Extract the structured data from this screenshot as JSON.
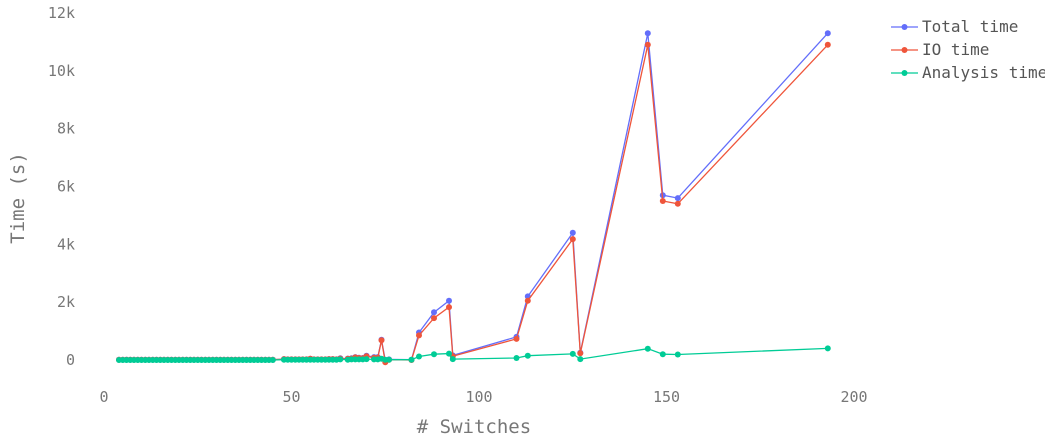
{
  "chart_data": {
    "type": "line",
    "title": "",
    "xlabel": "# Switches",
    "ylabel": "Time (s)",
    "xlim": [
      0,
      210
    ],
    "ylim": [
      -200,
      12000
    ],
    "xticks": [
      0,
      50,
      100,
      150,
      200
    ],
    "xtick_labels": [
      "0",
      "50",
      "100",
      "150",
      "200"
    ],
    "yticks": [
      0,
      2000,
      4000,
      6000,
      8000,
      10000,
      12000
    ],
    "ytick_labels": [
      "0",
      "2k",
      "4k",
      "6k",
      "8k",
      "10k",
      "12k"
    ],
    "grid": false,
    "legend_position": "top-right",
    "series": [
      {
        "name": "Total time",
        "color": "#636efa",
        "points": [
          [
            4,
            10
          ],
          [
            5,
            10
          ],
          [
            6,
            10
          ],
          [
            7,
            10
          ],
          [
            8,
            10
          ],
          [
            9,
            10
          ],
          [
            10,
            10
          ],
          [
            11,
            10
          ],
          [
            12,
            10
          ],
          [
            13,
            10
          ],
          [
            14,
            10
          ],
          [
            15,
            10
          ],
          [
            16,
            10
          ],
          [
            17,
            10
          ],
          [
            18,
            10
          ],
          [
            19,
            10
          ],
          [
            20,
            10
          ],
          [
            21,
            10
          ],
          [
            22,
            10
          ],
          [
            23,
            10
          ],
          [
            24,
            10
          ],
          [
            25,
            10
          ],
          [
            26,
            10
          ],
          [
            27,
            10
          ],
          [
            28,
            10
          ],
          [
            29,
            10
          ],
          [
            30,
            10
          ],
          [
            31,
            10
          ],
          [
            32,
            10
          ],
          [
            33,
            10
          ],
          [
            34,
            10
          ],
          [
            35,
            10
          ],
          [
            36,
            10
          ],
          [
            37,
            10
          ],
          [
            38,
            10
          ],
          [
            39,
            10
          ],
          [
            40,
            10
          ],
          [
            41,
            10
          ],
          [
            42,
            10
          ],
          [
            43,
            10
          ],
          [
            44,
            10
          ],
          [
            45,
            10
          ],
          [
            48,
            30
          ],
          [
            49,
            20
          ],
          [
            50,
            20
          ],
          [
            51,
            20
          ],
          [
            52,
            20
          ],
          [
            53,
            20
          ],
          [
            54,
            20
          ],
          [
            55,
            40
          ],
          [
            56,
            20
          ],
          [
            57,
            20
          ],
          [
            58,
            20
          ],
          [
            59,
            20
          ],
          [
            60,
            30
          ],
          [
            61,
            30
          ],
          [
            62,
            20
          ],
          [
            63,
            60
          ],
          [
            65,
            50
          ],
          [
            66,
            60
          ],
          [
            67,
            100
          ],
          [
            68,
            80
          ],
          [
            69,
            70
          ],
          [
            70,
            150
          ],
          [
            72,
            100
          ],
          [
            73,
            100
          ],
          [
            74,
            700
          ],
          [
            75,
            -20
          ],
          [
            76,
            20
          ],
          [
            82,
            10
          ],
          [
            84,
            950
          ],
          [
            88,
            1650
          ],
          [
            92,
            2050
          ],
          [
            93,
            160
          ],
          [
            110,
            800
          ],
          [
            113,
            2200
          ],
          [
            125,
            4400
          ],
          [
            127,
            250
          ],
          [
            145,
            11300
          ],
          [
            149,
            5700
          ],
          [
            153,
            5600
          ],
          [
            193,
            11300
          ]
        ]
      },
      {
        "name": "IO time",
        "color": "#ef553b",
        "points": [
          [
            4,
            10
          ],
          [
            5,
            10
          ],
          [
            6,
            10
          ],
          [
            7,
            10
          ],
          [
            8,
            10
          ],
          [
            9,
            10
          ],
          [
            10,
            10
          ],
          [
            11,
            10
          ],
          [
            12,
            10
          ],
          [
            13,
            10
          ],
          [
            14,
            10
          ],
          [
            15,
            10
          ],
          [
            16,
            10
          ],
          [
            17,
            10
          ],
          [
            18,
            10
          ],
          [
            19,
            10
          ],
          [
            20,
            10
          ],
          [
            21,
            10
          ],
          [
            22,
            10
          ],
          [
            23,
            10
          ],
          [
            24,
            10
          ],
          [
            25,
            10
          ],
          [
            26,
            10
          ],
          [
            27,
            10
          ],
          [
            28,
            10
          ],
          [
            29,
            10
          ],
          [
            30,
            10
          ],
          [
            31,
            10
          ],
          [
            32,
            10
          ],
          [
            33,
            10
          ],
          [
            34,
            10
          ],
          [
            35,
            10
          ],
          [
            36,
            10
          ],
          [
            37,
            10
          ],
          [
            38,
            10
          ],
          [
            39,
            10
          ],
          [
            40,
            10
          ],
          [
            41,
            10
          ],
          [
            42,
            10
          ],
          [
            43,
            10
          ],
          [
            44,
            10
          ],
          [
            45,
            10
          ],
          [
            48,
            30
          ],
          [
            49,
            20
          ],
          [
            50,
            20
          ],
          [
            51,
            20
          ],
          [
            52,
            20
          ],
          [
            53,
            20
          ],
          [
            54,
            20
          ],
          [
            55,
            40
          ],
          [
            56,
            20
          ],
          [
            57,
            20
          ],
          [
            58,
            20
          ],
          [
            59,
            20
          ],
          [
            60,
            30
          ],
          [
            61,
            30
          ],
          [
            62,
            20
          ],
          [
            63,
            50
          ],
          [
            65,
            40
          ],
          [
            66,
            50
          ],
          [
            67,
            90
          ],
          [
            68,
            70
          ],
          [
            69,
            60
          ],
          [
            70,
            130
          ],
          [
            72,
            80
          ],
          [
            73,
            80
          ],
          [
            74,
            680
          ],
          [
            75,
            -80
          ],
          [
            76,
            10
          ],
          [
            82,
            0
          ],
          [
            84,
            850
          ],
          [
            88,
            1450
          ],
          [
            92,
            1830
          ],
          [
            93,
            130
          ],
          [
            110,
            730
          ],
          [
            113,
            2050
          ],
          [
            125,
            4180
          ],
          [
            127,
            230
          ],
          [
            145,
            10900
          ],
          [
            149,
            5500
          ],
          [
            153,
            5400
          ],
          [
            193,
            10900
          ]
        ]
      },
      {
        "name": "Analysis time",
        "color": "#00cc96",
        "points": [
          [
            4,
            0
          ],
          [
            5,
            0
          ],
          [
            6,
            0
          ],
          [
            7,
            0
          ],
          [
            8,
            0
          ],
          [
            9,
            0
          ],
          [
            10,
            0
          ],
          [
            11,
            0
          ],
          [
            12,
            0
          ],
          [
            13,
            0
          ],
          [
            14,
            0
          ],
          [
            15,
            0
          ],
          [
            16,
            0
          ],
          [
            17,
            0
          ],
          [
            18,
            0
          ],
          [
            19,
            0
          ],
          [
            20,
            0
          ],
          [
            21,
            0
          ],
          [
            22,
            0
          ],
          [
            23,
            0
          ],
          [
            24,
            0
          ],
          [
            25,
            0
          ],
          [
            26,
            0
          ],
          [
            27,
            0
          ],
          [
            28,
            0
          ],
          [
            29,
            0
          ],
          [
            30,
            0
          ],
          [
            31,
            0
          ],
          [
            32,
            0
          ],
          [
            33,
            0
          ],
          [
            34,
            0
          ],
          [
            35,
            0
          ],
          [
            36,
            0
          ],
          [
            37,
            0
          ],
          [
            38,
            0
          ],
          [
            39,
            0
          ],
          [
            40,
            0
          ],
          [
            41,
            0
          ],
          [
            42,
            0
          ],
          [
            43,
            0
          ],
          [
            44,
            0
          ],
          [
            45,
            0
          ],
          [
            48,
            10
          ],
          [
            49,
            10
          ],
          [
            50,
            10
          ],
          [
            51,
            10
          ],
          [
            52,
            10
          ],
          [
            53,
            10
          ],
          [
            54,
            10
          ],
          [
            55,
            10
          ],
          [
            56,
            10
          ],
          [
            57,
            10
          ],
          [
            58,
            10
          ],
          [
            59,
            10
          ],
          [
            60,
            10
          ],
          [
            61,
            10
          ],
          [
            62,
            10
          ],
          [
            63,
            20
          ],
          [
            65,
            10
          ],
          [
            66,
            20
          ],
          [
            67,
            20
          ],
          [
            68,
            20
          ],
          [
            69,
            20
          ],
          [
            70,
            30
          ],
          [
            72,
            20
          ],
          [
            73,
            20
          ],
          [
            74,
            40
          ],
          [
            75,
            10
          ],
          [
            76,
            10
          ],
          [
            82,
            10
          ],
          [
            84,
            120
          ],
          [
            88,
            200
          ],
          [
            92,
            220
          ],
          [
            93,
            30
          ],
          [
            110,
            70
          ],
          [
            113,
            150
          ],
          [
            125,
            210
          ],
          [
            127,
            30
          ],
          [
            145,
            390
          ],
          [
            149,
            200
          ],
          [
            153,
            190
          ],
          [
            193,
            400
          ]
        ]
      }
    ]
  }
}
